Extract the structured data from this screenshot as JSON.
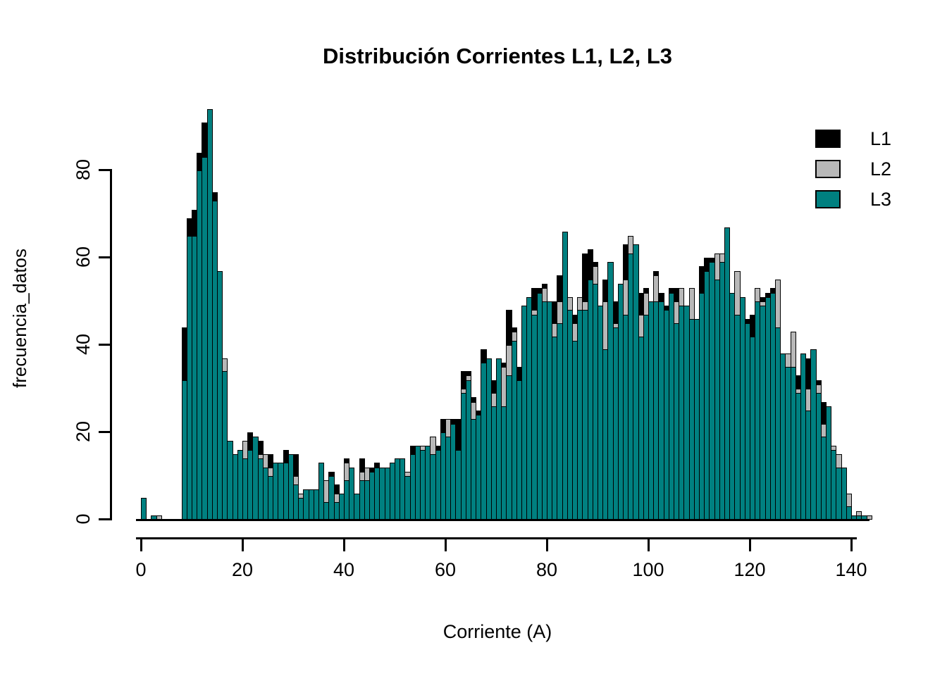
{
  "title": "Distribución Corrientes L1, L2, L3",
  "x_axis": {
    "label": "Corriente (A)",
    "ticks": [
      0,
      20,
      40,
      60,
      80,
      100,
      120,
      140
    ]
  },
  "y_axis": {
    "label": "frecuencia_datos",
    "ticks": [
      0,
      20,
      40,
      60,
      80
    ]
  },
  "legend": {
    "position": "top-right",
    "items": [
      {
        "label": "L1",
        "color": "#000000"
      },
      {
        "label": "L2",
        "color": "#b8b8b8"
      },
      {
        "label": "L3",
        "color": "#008080"
      }
    ]
  },
  "chart_data": {
    "type": "bar",
    "subtype": "overlaid-histogram",
    "title": "Distribución Corrientes L1, L2, L3",
    "xlabel": "Corriente (A)",
    "ylabel": "frecuencia_datos",
    "xlim": [
      0,
      145
    ],
    "ylim": [
      0,
      95
    ],
    "grid": false,
    "legend_position": "top-right",
    "x_bins": {
      "start": 0,
      "width": 1,
      "count": 144
    },
    "series": [
      {
        "name": "L1",
        "color": "#000000",
        "values": [
          0,
          0,
          0,
          0,
          0,
          0,
          0,
          0,
          44,
          69,
          71,
          84,
          91,
          90,
          75,
          55,
          34,
          17,
          15,
          16,
          15,
          20,
          19,
          18,
          13,
          15,
          13,
          13,
          16,
          14,
          15,
          5,
          6,
          7,
          7,
          13,
          9,
          11,
          8,
          6,
          14,
          12,
          6,
          14,
          12,
          12,
          13,
          12,
          12,
          13,
          14,
          14,
          11,
          17,
          17,
          17,
          17,
          19,
          17,
          23,
          23,
          23,
          23,
          34,
          34,
          28,
          25,
          39,
          37,
          32,
          35,
          36,
          48,
          44,
          35,
          49,
          50,
          53,
          53,
          54,
          50,
          50,
          56,
          55,
          51,
          47,
          51,
          61,
          62,
          59,
          49,
          55,
          59,
          50,
          54,
          63,
          65,
          63,
          52,
          53,
          50,
          57,
          52,
          49,
          53,
          53,
          53,
          49,
          53,
          46,
          58,
          60,
          60,
          61,
          59,
          60,
          52,
          47,
          51,
          46,
          47,
          53,
          51,
          52,
          53,
          46,
          38,
          36,
          40,
          33,
          38,
          37,
          39,
          32,
          27,
          26,
          16,
          14,
          11,
          5,
          1,
          1,
          1,
          0
        ]
      },
      {
        "name": "L2",
        "color": "#b8b8b8",
        "values": [
          0,
          0,
          0,
          1,
          0,
          0,
          0,
          0,
          30,
          60,
          63,
          75,
          80,
          88,
          70,
          50,
          37,
          16,
          14,
          14,
          18,
          15,
          17,
          15,
          15,
          12,
          13,
          12,
          13,
          13,
          10,
          6,
          6,
          6,
          7,
          12,
          9,
          10,
          6,
          6,
          13,
          12,
          6,
          11,
          12,
          10,
          11,
          12,
          11,
          12,
          13,
          12,
          11,
          14,
          16,
          17,
          15,
          19,
          15,
          20,
          23,
          20,
          16,
          30,
          33,
          27,
          22,
          35,
          37,
          29,
          33,
          35,
          40,
          43,
          30,
          45,
          48,
          48,
          50,
          53,
          48,
          45,
          50,
          55,
          51,
          45,
          51,
          50,
          55,
          58,
          48,
          50,
          55,
          45,
          50,
          55,
          65,
          60,
          47,
          52,
          48,
          56,
          48,
          48,
          50,
          50,
          53,
          47,
          53,
          44,
          52,
          55,
          57,
          61,
          61,
          60,
          50,
          57,
          48,
          44,
          42,
          53,
          50,
          50,
          51,
          55,
          38,
          38,
          43,
          30,
          36,
          30,
          36,
          31,
          22,
          24,
          17,
          15,
          11,
          6,
          1,
          2,
          1,
          1
        ]
      },
      {
        "name": "L3",
        "color": "#008080",
        "values": [
          5,
          0,
          1,
          0,
          0,
          0,
          0,
          0,
          32,
          65,
          65,
          80,
          83,
          94,
          73,
          57,
          34,
          18,
          15,
          16,
          14,
          16,
          19,
          14,
          12,
          10,
          13,
          13,
          13,
          15,
          8,
          5,
          7,
          7,
          7,
          13,
          4,
          10,
          4,
          6,
          9,
          12,
          6,
          9,
          9,
          11,
          12,
          12,
          12,
          13,
          14,
          14,
          10,
          15,
          17,
          16,
          17,
          15,
          16,
          20,
          19,
          22,
          16,
          29,
          32,
          23,
          24,
          36,
          37,
          26,
          37,
          26,
          33,
          41,
          32,
          49,
          51,
          47,
          52,
          50,
          50,
          42,
          45,
          66,
          48,
          41,
          48,
          48,
          55,
          54,
          49,
          39,
          59,
          44,
          54,
          47,
          61,
          63,
          42,
          47,
          50,
          50,
          50,
          48,
          52,
          45,
          49,
          49,
          46,
          46,
          52,
          57,
          59,
          55,
          59,
          67,
          52,
          47,
          51,
          45,
          42,
          50,
          49,
          51,
          52,
          44,
          38,
          35,
          35,
          29,
          38,
          25,
          39,
          29,
          19,
          26,
          16,
          12,
          12,
          3,
          1,
          1,
          1,
          0
        ]
      }
    ]
  }
}
